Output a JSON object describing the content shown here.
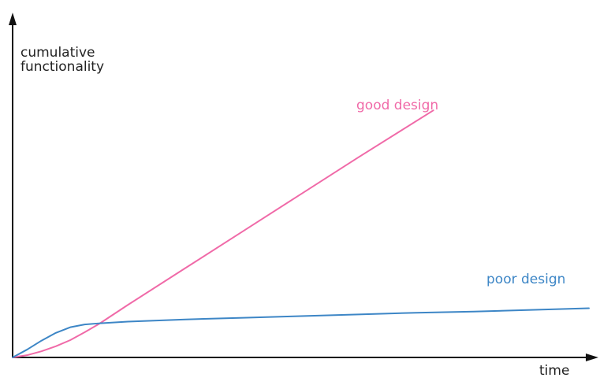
{
  "chart_data": {
    "type": "line",
    "title": "",
    "xlabel": "time",
    "ylabel": [
      "cumulative",
      "functionality"
    ],
    "xlim": [
      0,
      10
    ],
    "ylim": [
      0,
      6
    ],
    "grid": false,
    "legend": "none",
    "series": [
      {
        "name": "good design",
        "color": "#f06aa8",
        "label_position": "upper-middle",
        "x": [
          0,
          0.25,
          0.5,
          0.75,
          1.0,
          1.25,
          1.5,
          2.0,
          3.0,
          4.0,
          5.0,
          6.0,
          7.3
        ],
        "y": [
          0,
          0.04,
          0.11,
          0.2,
          0.31,
          0.45,
          0.6,
          0.94,
          1.6,
          2.26,
          2.92,
          3.58,
          4.42
        ]
      },
      {
        "name": "poor design",
        "color": "#3d86c6",
        "label_position": "right",
        "x": [
          0,
          0.25,
          0.5,
          0.75,
          1.0,
          1.25,
          1.5,
          2.0,
          3.0,
          4.0,
          5.0,
          6.0,
          7.0,
          8.0,
          9.0,
          10.0
        ],
        "y": [
          0,
          0.14,
          0.3,
          0.44,
          0.54,
          0.59,
          0.61,
          0.64,
          0.68,
          0.71,
          0.74,
          0.77,
          0.8,
          0.82,
          0.85,
          0.88
        ]
      }
    ]
  }
}
